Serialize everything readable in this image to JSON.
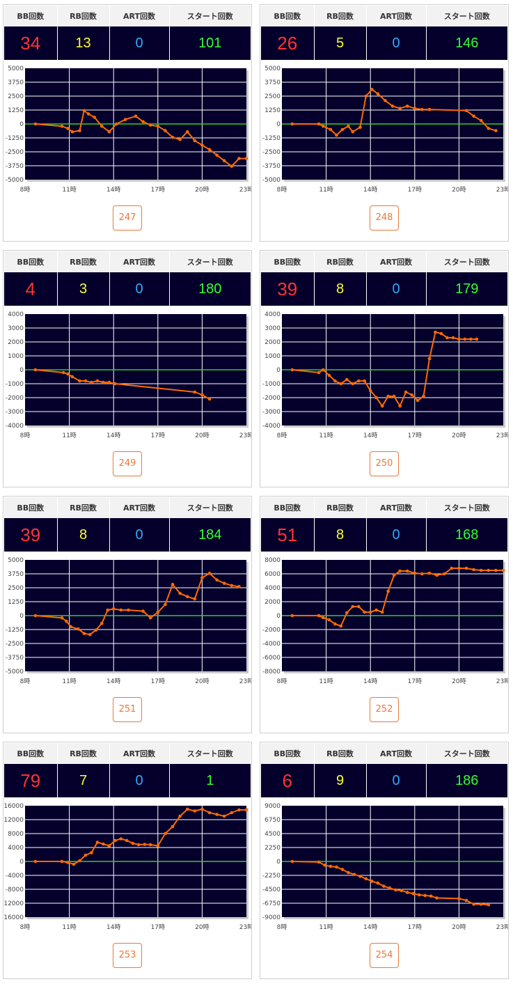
{
  "headers": {
    "bb": "BB回数",
    "rb": "RB回数",
    "art": "ART回数",
    "start": "スタート回数"
  },
  "x_tick_labels": [
    "8時",
    "11時",
    "14時",
    "17時",
    "20時",
    "23時"
  ],
  "colors": {
    "plot_bg": "#05002b",
    "line": "#ff6a00",
    "zero_line": "#33cc33",
    "bb": "#ff3333",
    "rb": "#ffff33",
    "art": "#33aaff",
    "start": "#33ff33",
    "button_border": "#e8783a"
  },
  "cards": [
    {
      "bb": "34",
      "rb": "13",
      "art": "0",
      "start": "101",
      "machine": "247",
      "chart_data": {
        "type": "line",
        "xlim": [
          8,
          23
        ],
        "ylim": [
          -5000,
          5000
        ],
        "y_ticks": [
          "5000",
          "3750",
          "2500",
          "1250",
          "0",
          "-1250",
          "-2500",
          "-3750",
          "-5000"
        ],
        "x": [
          8.7,
          10.5,
          10.9,
          11.2,
          11.7,
          12.0,
          12.3,
          12.7,
          13.2,
          13.7,
          14.2,
          14.8,
          15.5,
          16.0,
          16.5,
          17.0,
          17.5,
          18.0,
          18.5,
          19.0,
          19.5,
          20.0,
          20.5,
          21.0,
          21.5,
          22.0,
          22.5,
          23.0
        ],
        "y": [
          0,
          -200,
          -400,
          -700,
          -600,
          1200,
          900,
          600,
          -200,
          -700,
          0,
          400,
          700,
          200,
          -100,
          -200,
          -600,
          -1200,
          -1400,
          -700,
          -1500,
          -1900,
          -2300,
          -2800,
          -3300,
          -3800,
          -3100,
          -3100
        ]
      }
    },
    {
      "bb": "26",
      "rb": "5",
      "art": "0",
      "start": "146",
      "machine": "248",
      "chart_data": {
        "type": "line",
        "xlim": [
          8,
          23
        ],
        "ylim": [
          -5000,
          5000
        ],
        "y_ticks": [
          "5000",
          "3750",
          "2500",
          "1250",
          "0",
          "-1250",
          "-2500",
          "-3750",
          "-5000"
        ],
        "x": [
          8.7,
          10.5,
          10.8,
          11.3,
          11.7,
          12.1,
          12.5,
          12.8,
          13.3,
          13.7,
          14.1,
          14.5,
          15.0,
          15.5,
          16.0,
          16.5,
          17.0,
          17.5,
          18.0,
          20.5,
          21.0,
          21.5,
          22.0,
          22.5
        ],
        "y": [
          0,
          0,
          -200,
          -500,
          -1000,
          -500,
          -200,
          -700,
          -300,
          2500,
          3100,
          2700,
          2100,
          1600,
          1400,
          1600,
          1400,
          1300,
          1300,
          1200,
          700,
          300,
          -400,
          -600
        ]
      }
    },
    {
      "bb": "4",
      "rb": "3",
      "art": "0",
      "start": "180",
      "machine": "249",
      "chart_data": {
        "type": "line",
        "xlim": [
          8,
          23
        ],
        "ylim": [
          -4000,
          4000
        ],
        "y_ticks": [
          "4000",
          "3000",
          "2000",
          "1000",
          "0",
          "-1000",
          "-2000",
          "-3000",
          "-4000"
        ],
        "x": [
          8.7,
          10.6,
          10.9,
          11.2,
          11.7,
          12.1,
          12.5,
          12.9,
          13.3,
          13.7,
          14.1,
          19.5,
          20.0,
          20.5
        ],
        "y": [
          0,
          -200,
          -300,
          -500,
          -800,
          -800,
          -900,
          -800,
          -900,
          -900,
          -1000,
          -1600,
          -1800,
          -2100
        ]
      }
    },
    {
      "bb": "39",
      "rb": "8",
      "art": "0",
      "start": "179",
      "machine": "250",
      "chart_data": {
        "type": "line",
        "xlim": [
          8,
          23
        ],
        "ylim": [
          -4000,
          4000
        ],
        "y_ticks": [
          "4000",
          "3000",
          "2000",
          "1000",
          "0",
          "-1000",
          "-2000",
          "-3000",
          "-4000"
        ],
        "x": [
          8.7,
          10.5,
          10.8,
          11.2,
          11.6,
          12.0,
          12.4,
          12.8,
          13.2,
          13.6,
          14.0,
          14.4,
          14.8,
          15.2,
          15.6,
          16.0,
          16.4,
          16.8,
          17.2,
          17.6,
          18.0,
          18.4,
          18.8,
          19.2,
          19.6,
          20.0,
          20.4,
          20.8,
          21.2
        ],
        "y": [
          0,
          -200,
          0,
          -400,
          -800,
          -1000,
          -700,
          -1000,
          -800,
          -800,
          -1500,
          -2000,
          -2600,
          -1900,
          -1900,
          -2600,
          -1600,
          -1800,
          -2200,
          -1900,
          800,
          2700,
          2600,
          2300,
          2300,
          2200,
          2200,
          2200,
          2200
        ]
      }
    },
    {
      "bb": "39",
      "rb": "8",
      "art": "0",
      "start": "184",
      "machine": "251",
      "chart_data": {
        "type": "line",
        "xlim": [
          8,
          23
        ],
        "ylim": [
          -5000,
          5000
        ],
        "y_ticks": [
          "5000",
          "3750",
          "2500",
          "1250",
          "0",
          "-1250",
          "-2500",
          "-3750",
          "-5000"
        ],
        "x": [
          8.7,
          10.5,
          10.8,
          11.1,
          11.6,
          12.0,
          12.4,
          12.8,
          13.2,
          13.6,
          14.0,
          14.5,
          15.0,
          16.0,
          16.5,
          17.0,
          17.5,
          18.0,
          18.5,
          19.0,
          19.5,
          20.0,
          20.5,
          21.0,
          21.5,
          22.0,
          22.5
        ],
        "y": [
          0,
          -200,
          -500,
          -1000,
          -1200,
          -1600,
          -1700,
          -1300,
          -700,
          500,
          600,
          500,
          500,
          400,
          -200,
          300,
          1000,
          2800,
          2000,
          1700,
          1500,
          3400,
          3800,
          3200,
          2900,
          2700,
          2600
        ]
      }
    },
    {
      "bb": "51",
      "rb": "8",
      "art": "0",
      "start": "168",
      "machine": "252",
      "chart_data": {
        "type": "line",
        "xlim": [
          8,
          23
        ],
        "ylim": [
          -8000,
          8000
        ],
        "y_ticks": [
          "8000",
          "6000",
          "4000",
          "2000",
          "0",
          "-2000",
          "-4000",
          "-6000",
          "-8000"
        ],
        "x": [
          8.7,
          10.5,
          10.8,
          11.2,
          11.6,
          12.0,
          12.4,
          12.8,
          13.2,
          13.6,
          14.0,
          14.4,
          14.8,
          15.2,
          15.6,
          16.0,
          16.5,
          17.0,
          17.5,
          18.0,
          18.5,
          19.0,
          19.5,
          20.0,
          20.5,
          21.0,
          21.5,
          22.0,
          22.5,
          23.0
        ],
        "y": [
          0,
          0,
          -300,
          -600,
          -1200,
          -1500,
          400,
          1300,
          1300,
          500,
          500,
          800,
          500,
          3500,
          5800,
          6400,
          6400,
          6100,
          6000,
          6100,
          5800,
          6000,
          6800,
          6800,
          6800,
          6600,
          6500,
          6500,
          6500,
          6500
        ]
      }
    },
    {
      "bb": "79",
      "rb": "7",
      "art": "0",
      "start": "1",
      "machine": "253",
      "chart_data": {
        "type": "line",
        "xlim": [
          8,
          23
        ],
        "ylim": [
          -16000,
          16000
        ],
        "y_ticks": [
          "16000",
          "12000",
          "8000",
          "4000",
          "0",
          "-4000",
          "-8000",
          "-12000",
          "-16000"
        ],
        "x": [
          8.7,
          10.5,
          10.9,
          11.3,
          11.7,
          12.1,
          12.5,
          12.9,
          13.3,
          13.7,
          14.1,
          14.5,
          14.9,
          15.3,
          15.7,
          16.1,
          16.5,
          17.0,
          17.5,
          18.0,
          18.5,
          19.0,
          19.5,
          20.0,
          20.5,
          21.0,
          21.5,
          22.0,
          22.5,
          23.0
        ],
        "y": [
          0,
          0,
          -300,
          -800,
          200,
          1800,
          2500,
          5500,
          5000,
          4500,
          6000,
          6500,
          6000,
          5200,
          4800,
          4900,
          4800,
          4500,
          8000,
          10000,
          13000,
          15000,
          14500,
          15000,
          14000,
          13500,
          13000,
          14000,
          14800,
          14800
        ]
      }
    },
    {
      "bb": "6",
      "rb": "9",
      "art": "0",
      "start": "186",
      "machine": "254",
      "chart_data": {
        "type": "line",
        "xlim": [
          8,
          23
        ],
        "ylim": [
          -9000,
          9000
        ],
        "y_ticks": [
          "9000",
          "6750",
          "4500",
          "2250",
          "0",
          "-2250",
          "-4500",
          "-6750",
          "-9000"
        ],
        "x": [
          8.7,
          10.5,
          10.9,
          11.3,
          11.7,
          12.1,
          12.5,
          12.9,
          13.3,
          13.7,
          14.1,
          14.5,
          14.9,
          15.3,
          15.7,
          16.1,
          16.5,
          16.9,
          17.3,
          17.7,
          18.1,
          18.5,
          20.0,
          20.5,
          21.0,
          21.5,
          22.0
        ],
        "y": [
          0,
          -100,
          -600,
          -800,
          -900,
          -1300,
          -1800,
          -2100,
          -2400,
          -2800,
          -3200,
          -3500,
          -4000,
          -4300,
          -4600,
          -4700,
          -5000,
          -5200,
          -5400,
          -5500,
          -5600,
          -5900,
          -6000,
          -6300,
          -6900,
          -6900,
          -7000
        ]
      }
    }
  ]
}
